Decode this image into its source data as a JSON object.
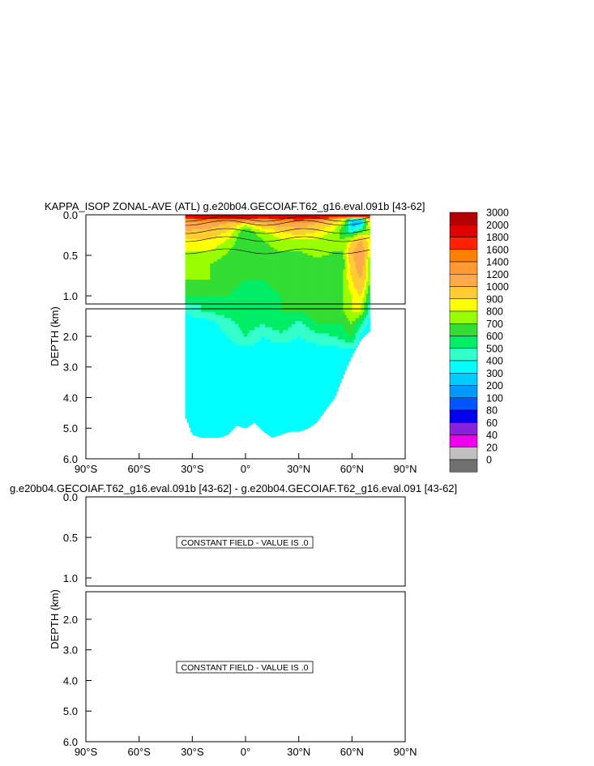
{
  "chart_data": [
    {
      "type": "heatmap",
      "title": "KAPPA_ISOP ZONAL-AVE (ATL) g.e20b04.GECOIAF.T62_g16.eval.091b [43-62]",
      "ylabel": "DEPTH (km)",
      "xlim": [
        -90,
        90
      ],
      "x_ticks": [
        -90,
        -60,
        -30,
        0,
        30,
        60,
        90
      ],
      "x_tick_labels": [
        "90°S",
        "60°S",
        "30°S",
        "0°",
        "30°N",
        "60°N",
        "90°N"
      ],
      "upper_panel": {
        "ylim": [
          0.0,
          1.1
        ],
        "y_ticks": [
          0.0,
          0.5,
          1.0
        ],
        "y_tick_labels": [
          "0.0",
          "0.5",
          "1.0"
        ]
      },
      "lower_panel": {
        "ylim": [
          1.1,
          6.0
        ],
        "y_ticks": [
          2.0,
          3.0,
          4.0,
          5.0,
          6.0
        ],
        "y_tick_labels": [
          "2.0",
          "3.0",
          "4.0",
          "5.0",
          "6.0"
        ]
      },
      "data_extent": {
        "lat_min": -34,
        "lat_max": 70
      },
      "surface_field": {
        "lat": [
          -34,
          -20,
          -10,
          0,
          10,
          20,
          30,
          40,
          50,
          55,
          60,
          65,
          70
        ],
        "depth": [
          0.0,
          0.05,
          0.1,
          0.2,
          0.3,
          0.45,
          0.6,
          0.8,
          1.0,
          1.2,
          1.6,
          2.0,
          2.5
        ],
        "values": [
          [
            3000,
            3000,
            3000,
            3000,
            3000,
            3000,
            3000,
            3000,
            3000,
            3000,
            3000,
            3000,
            3000
          ],
          [
            1600,
            1800,
            2000,
            1800,
            1600,
            1800,
            2000,
            1800,
            1200,
            1000,
            600,
            400,
            1200
          ],
          [
            1400,
            1400,
            1200,
            1000,
            1200,
            1400,
            1400,
            1200,
            1000,
            900,
            300,
            300,
            1000
          ],
          [
            1200,
            1100,
            1000,
            700,
            900,
            1000,
            1100,
            1000,
            900,
            700,
            500,
            700,
            900
          ],
          [
            1000,
            1000,
            900,
            700,
            800,
            900,
            900,
            900,
            800,
            800,
            900,
            1200,
            900
          ],
          [
            900,
            900,
            800,
            700,
            750,
            800,
            800,
            850,
            800,
            800,
            1200,
            1400,
            900
          ],
          [
            800,
            800,
            750,
            700,
            700,
            750,
            700,
            750,
            750,
            750,
            1100,
            1400,
            800
          ],
          [
            800,
            800,
            750,
            700,
            700,
            750,
            750,
            750,
            750,
            800,
            1000,
            1200,
            800
          ],
          [
            700,
            700,
            700,
            650,
            650,
            700,
            700,
            700,
            750,
            800,
            900,
            1000,
            700
          ],
          [
            500,
            600,
            650,
            650,
            650,
            700,
            700,
            750,
            800,
            800,
            900,
            900,
            500
          ],
          [
            450,
            450,
            550,
            650,
            600,
            700,
            550,
            700,
            700,
            700,
            800,
            600,
            450
          ],
          [
            450,
            450,
            500,
            600,
            500,
            550,
            500,
            550,
            600,
            650,
            700,
            450,
            450
          ],
          [
            450,
            450,
            450,
            450,
            450,
            450,
            450,
            450,
            450,
            450,
            450,
            450,
            450
          ]
        ]
      },
      "deep_value": 450,
      "bottom_profile": {
        "lat": [
          -34,
          -30,
          -25,
          -20,
          -15,
          -10,
          -5,
          0,
          5,
          10,
          15,
          20,
          25,
          30,
          35,
          40,
          45,
          50,
          55,
          60,
          65,
          70
        ],
        "depth": [
          4.6,
          5.2,
          5.3,
          5.3,
          5.3,
          5.2,
          4.9,
          5.0,
          4.8,
          5.1,
          5.3,
          5.2,
          5.1,
          5.1,
          5.0,
          4.8,
          4.4,
          4.0,
          3.3,
          2.6,
          2.1,
          1.8
        ]
      },
      "colorbar": {
        "labels": [
          "3000",
          "2000",
          "1800",
          "1600",
          "1400",
          "1200",
          "1000",
          "900",
          "800",
          "700",
          "600",
          "500",
          "400",
          "300",
          "200",
          "100",
          "80",
          "60",
          "40",
          "20",
          "0"
        ],
        "colors": [
          "#b30000",
          "#e00000",
          "#ff2000",
          "#ff8000",
          "#ff9933",
          "#ffa94d",
          "#ffcc33",
          "#ffff00",
          "#99ff00",
          "#33dd33",
          "#00ee66",
          "#33ffcc",
          "#00ffff",
          "#00ccff",
          "#0099ff",
          "#0055ff",
          "#0000ee",
          "#8822dd",
          "#ee00ee",
          "#c0c0c0",
          "#707070"
        ],
        "thresholds": [
          3000,
          2000,
          1800,
          1600,
          1400,
          1200,
          1000,
          900,
          800,
          700,
          600,
          500,
          400,
          300,
          200,
          100,
          80,
          60,
          40,
          20,
          0
        ]
      }
    },
    {
      "type": "heatmap",
      "title": "g.e20b04.GECOIAF.T62_g16.eval.091b [43-62] - g.e20b04.GECOIAF.T62_g16.eval.091 [43-62]",
      "ylabel": "DEPTH (km)",
      "xlim": [
        -90,
        90
      ],
      "x_ticks": [
        -90,
        -60,
        -30,
        0,
        30,
        60,
        90
      ],
      "x_tick_labels": [
        "90°S",
        "60°S",
        "30°S",
        "0°",
        "30°N",
        "60°N",
        "90°N"
      ],
      "upper_panel": {
        "ylim": [
          0.0,
          1.1
        ],
        "y_ticks": [
          0.0,
          0.5,
          1.0
        ],
        "y_tick_labels": [
          "0.0",
          "0.5",
          "1.0"
        ]
      },
      "lower_panel": {
        "ylim": [
          1.1,
          6.0
        ],
        "y_ticks": [
          2.0,
          3.0,
          4.0,
          5.0,
          6.0
        ],
        "y_tick_labels": [
          "2.0",
          "3.0",
          "4.0",
          "5.0",
          "6.0"
        ]
      },
      "constant_field_value": 0.0,
      "annotations": [
        "CONSTANT FIELD - VALUE IS .0",
        "CONSTANT FIELD - VALUE IS .0"
      ]
    }
  ]
}
